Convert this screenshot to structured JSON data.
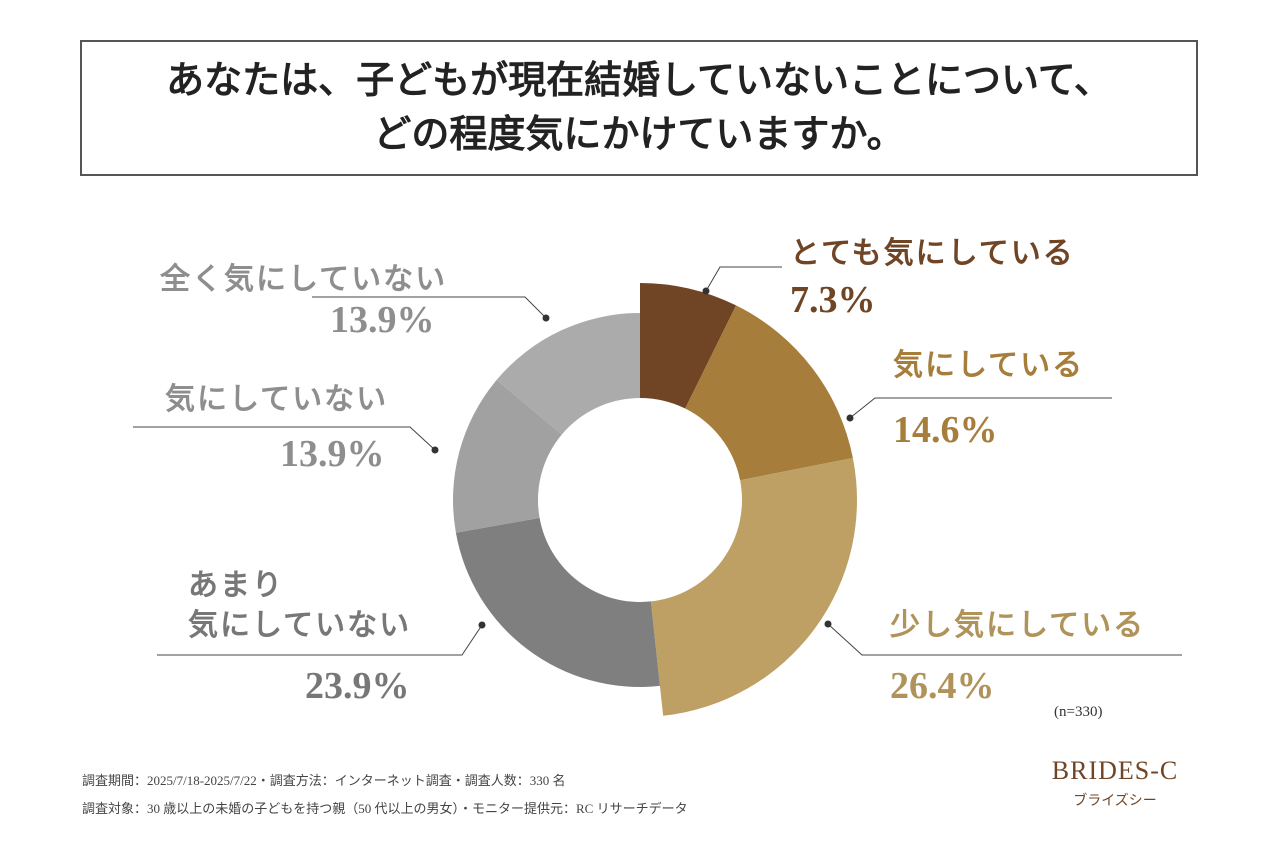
{
  "chart_data": {
    "type": "donut",
    "title": "あなたは、子どもが現在結婚していないことについて、\nどの程度気にかけていますか。",
    "categories": [
      "とても気にしている",
      "気にしている",
      "少し気にしている",
      "あまり\n気にしていない",
      "気にしていない",
      "全く気にしていない"
    ],
    "values": [
      7.3,
      14.6,
      26.4,
      23.9,
      13.9,
      13.9
    ],
    "value_labels": [
      "7.3%",
      "14.6%",
      "26.4%",
      "23.9%",
      "13.9%",
      "13.9%"
    ],
    "colors": [
      "#6f4526",
      "#a67d3b",
      "#bea064",
      "#7f7f7f",
      "#a1a1a1",
      "#ababab"
    ],
    "sample_note": "(n=330)"
  },
  "footer": {
    "notes": [
      "調査期間：2025/7/18-2025/7/22・調査方法：インターネット調査・調査人数：330 名",
      "調査対象：30 歳以上の未婚の子どもを持つ親（50 代以上の男女）・モニター提供元：RC リサーチデータ"
    ],
    "logo": "BRIDES-C",
    "logo_sub": "ブライズシー"
  }
}
